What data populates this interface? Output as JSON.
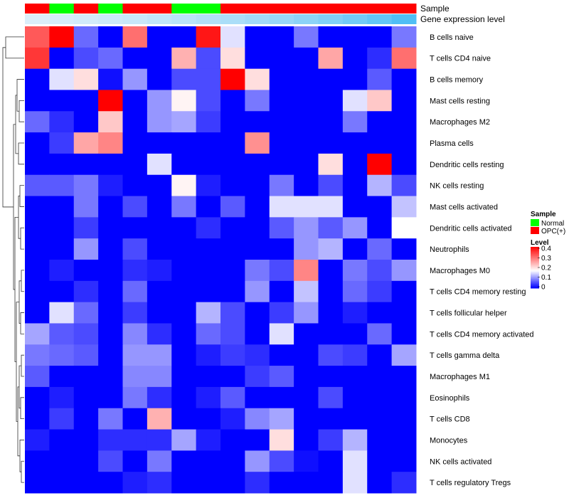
{
  "chart_data": {
    "type": "heatmap",
    "title": "",
    "annotation_tracks": [
      {
        "name": "Sample",
        "values": [
          "OPC(+)",
          "Normal",
          "OPC(+)",
          "Normal",
          "OPC(+)",
          "OPC(+)",
          "Normal",
          "Normal",
          "OPC(+)",
          "OPC(+)",
          "OPC(+)",
          "OPC(+)",
          "OPC(+)",
          "OPC(+)",
          "OPC(+)",
          "OPC(+)"
        ]
      },
      {
        "name": "Gene expression level",
        "values": [
          0.02,
          0.04,
          0.06,
          0.08,
          0.1,
          0.13,
          0.16,
          0.19,
          0.22,
          0.26,
          0.3,
          0.35,
          0.4,
          0.46,
          0.52,
          0.6
        ]
      }
    ],
    "rows": [
      "B cells naive",
      "T cells CD4 naive",
      "B cells memory",
      "Mast cells resting",
      "Macrophages M2",
      "Plasma cells",
      "Dendritic cells resting",
      "NK cells resting",
      "Mast cells activated",
      "Dendritic cells activated",
      "Neutrophils",
      "Macrophages M0",
      "T cells CD4 memory resting",
      "T cells follicular helper",
      "T cells CD4 memory activated",
      "T cells gamma delta",
      "Macrophages M1",
      "Eosinophils",
      "T cells CD8",
      "Monocytes",
      "NK cells activated",
      "T cells regulatory  Tregs"
    ],
    "values": [
      [
        0.32,
        0.4,
        0.07,
        0.0,
        0.3,
        0.0,
        0.0,
        0.38,
        0.15,
        0.0,
        0.0,
        0.08,
        0.0,
        0.0,
        0.0,
        0.08
      ],
      [
        0.35,
        0.0,
        0.05,
        0.07,
        0.0,
        0.0,
        0.24,
        0.05,
        0.2,
        0.0,
        0.0,
        0.0,
        0.25,
        0.0,
        0.03,
        0.3
      ],
      [
        0.0,
        0.15,
        0.2,
        0.01,
        0.1,
        0.0,
        0.05,
        0.05,
        0.4,
        0.2,
        0.0,
        0.0,
        0.0,
        0.0,
        0.06,
        0.0
      ],
      [
        0.0,
        0.0,
        0.0,
        0.4,
        0.0,
        0.1,
        0.18,
        0.05,
        0.0,
        0.08,
        0.0,
        0.0,
        0.0,
        0.15,
        0.22,
        0.0
      ],
      [
        0.07,
        0.03,
        0.0,
        0.22,
        0.0,
        0.1,
        0.11,
        0.04,
        0.0,
        0.0,
        0.0,
        0.0,
        0.0,
        0.08,
        0.0,
        0.0
      ],
      [
        0.0,
        0.04,
        0.25,
        0.28,
        0.0,
        0.0,
        0.0,
        0.0,
        0.0,
        0.27,
        0.0,
        0.0,
        0.0,
        0.0,
        0.0,
        0.0
      ],
      [
        0.0,
        0.0,
        0.0,
        0.0,
        0.0,
        0.15,
        0.0,
        0.0,
        0.0,
        0.0,
        0.0,
        0.0,
        0.2,
        0.0,
        0.4,
        0.0
      ],
      [
        0.06,
        0.06,
        0.08,
        0.02,
        0.0,
        0.0,
        0.18,
        0.02,
        0.0,
        0.0,
        0.08,
        0.0,
        0.05,
        0.0,
        0.12,
        0.05
      ],
      [
        0.0,
        0.0,
        0.08,
        0.0,
        0.05,
        0.0,
        0.08,
        0.0,
        0.06,
        0.0,
        0.15,
        0.15,
        0.15,
        0.0,
        0.0,
        0.13
      ],
      [
        0.0,
        0.0,
        0.04,
        0.0,
        0.0,
        0.0,
        0.0,
        0.03,
        0.0,
        0.0,
        0.06,
        0.1,
        0.06,
        0.1,
        0.0,
        0.17
      ],
      [
        0.0,
        0.0,
        0.1,
        0.0,
        0.05,
        0.0,
        0.0,
        0.0,
        0.0,
        0.0,
        0.0,
        0.1,
        0.12,
        0.0,
        0.07,
        0.0
      ],
      [
        0.0,
        0.02,
        0.0,
        0.0,
        0.03,
        0.02,
        0.0,
        0.0,
        0.0,
        0.08,
        0.05,
        0.28,
        0.0,
        0.08,
        0.05,
        0.1
      ],
      [
        0.0,
        0.0,
        0.03,
        0.0,
        0.07,
        0.0,
        0.0,
        0.0,
        0.0,
        0.1,
        0.0,
        0.13,
        0.0,
        0.07,
        0.04,
        0.0
      ],
      [
        0.0,
        0.15,
        0.07,
        0.0,
        0.04,
        0.0,
        0.0,
        0.12,
        0.05,
        0.0,
        0.04,
        0.1,
        0.0,
        0.02,
        0.0,
        0.0
      ],
      [
        0.11,
        0.06,
        0.05,
        0.0,
        0.09,
        0.03,
        0.0,
        0.07,
        0.05,
        0.0,
        0.15,
        0.0,
        0.0,
        0.0,
        0.07,
        0.0
      ],
      [
        0.08,
        0.07,
        0.06,
        0.0,
        0.1,
        0.1,
        0.0,
        0.02,
        0.04,
        0.03,
        0.0,
        0.0,
        0.05,
        0.04,
        0.0,
        0.11
      ],
      [
        0.06,
        0.0,
        0.0,
        0.0,
        0.09,
        0.09,
        0.0,
        0.0,
        0.0,
        0.04,
        0.06,
        0.0,
        0.0,
        0.0,
        0.0,
        0.0
      ],
      [
        0.0,
        0.02,
        0.0,
        0.0,
        0.08,
        0.03,
        0.0,
        0.02,
        0.06,
        0.0,
        0.0,
        0.0,
        0.05,
        0.0,
        0.0,
        0.0
      ],
      [
        0.0,
        0.04,
        0.0,
        0.08,
        0.0,
        0.24,
        0.0,
        0.0,
        0.02,
        0.09,
        0.11,
        0.0,
        0.0,
        0.0,
        0.0,
        0.0
      ],
      [
        0.02,
        0.0,
        0.0,
        0.03,
        0.03,
        0.03,
        0.11,
        0.02,
        0.0,
        0.0,
        0.2,
        0.0,
        0.04,
        0.12,
        0.0,
        0.0
      ],
      [
        0.0,
        0.0,
        0.0,
        0.05,
        0.0,
        0.08,
        0.0,
        0.0,
        0.0,
        0.1,
        0.05,
        0.01,
        0.0,
        0.15,
        0.0,
        0.0
      ],
      [
        0.0,
        0.0,
        0.0,
        0.0,
        0.02,
        0.03,
        0.0,
        0.0,
        0.0,
        0.03,
        0.0,
        0.0,
        0.0,
        0.15,
        0.0,
        0.03
      ]
    ],
    "color_scale": {
      "min": 0,
      "max": 0.4,
      "low": "#0000ff",
      "mid": "#ffffff",
      "high": "#ff0000",
      "mid_value": 0.17
    },
    "legend": [
      {
        "title": "Sample",
        "entries": [
          {
            "label": "Normal",
            "color": "#00ff00"
          },
          {
            "label": "OPC(+)",
            "color": "#ff0000"
          }
        ]
      },
      {
        "title": "Level",
        "ticks": [
          "0.4",
          "0.3",
          "0.2",
          "0.1",
          "0"
        ]
      }
    ],
    "dendrogram": "rows",
    "grid": false
  }
}
